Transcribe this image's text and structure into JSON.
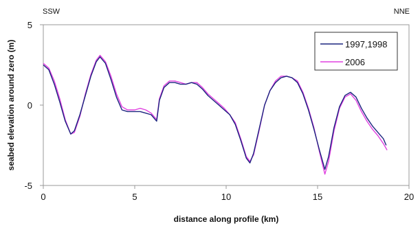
{
  "chart_data": {
    "type": "line",
    "title": "",
    "xlabel": "distance along profile (km)",
    "ylabel": "seabed elevation around zero (m)",
    "xlim": [
      0,
      20
    ],
    "ylim": [
      -5,
      5
    ],
    "x_ticks": [
      0,
      5,
      10,
      15,
      20
    ],
    "y_ticks": [
      -5,
      0,
      5
    ],
    "grid": false,
    "legend_position": "top-right",
    "annotations": {
      "left": "SSW",
      "right": "NNE"
    },
    "series": [
      {
        "name": "1997,1998",
        "color": "#1a237e",
        "x": [
          0,
          0.3,
          0.6,
          0.9,
          1.2,
          1.5,
          1.7,
          2.0,
          2.3,
          2.6,
          2.9,
          3.1,
          3.4,
          3.7,
          4.0,
          4.3,
          4.6,
          5.0,
          5.3,
          5.6,
          5.9,
          6.2,
          6.35,
          6.6,
          6.9,
          7.2,
          7.5,
          7.8,
          8.1,
          8.4,
          8.7,
          9.0,
          9.3,
          9.6,
          9.9,
          10.2,
          10.5,
          10.8,
          11.1,
          11.3,
          11.5,
          11.8,
          12.1,
          12.4,
          12.7,
          13.0,
          13.3,
          13.6,
          13.9,
          14.2,
          14.5,
          14.8,
          15.1,
          15.4,
          15.6,
          15.9,
          16.2,
          16.5,
          16.8,
          17.1,
          17.4,
          17.7,
          18.0,
          18.3,
          18.6,
          18.75
        ],
        "y": [
          2.5,
          2.2,
          1.3,
          0.2,
          -1.0,
          -1.8,
          -1.6,
          -0.6,
          0.6,
          1.8,
          2.7,
          3.0,
          2.6,
          1.6,
          0.5,
          -0.3,
          -0.4,
          -0.4,
          -0.4,
          -0.5,
          -0.6,
          -1.0,
          0.3,
          1.1,
          1.4,
          1.4,
          1.3,
          1.3,
          1.4,
          1.3,
          1.0,
          0.6,
          0.3,
          0.0,
          -0.3,
          -0.6,
          -1.2,
          -2.2,
          -3.3,
          -3.6,
          -3.0,
          -1.5,
          0.0,
          0.9,
          1.4,
          1.7,
          1.8,
          1.7,
          1.4,
          0.7,
          -0.3,
          -1.5,
          -2.8,
          -4.0,
          -3.2,
          -1.4,
          -0.1,
          0.6,
          0.8,
          0.5,
          -0.2,
          -0.8,
          -1.3,
          -1.7,
          -2.1,
          -2.5
        ]
      },
      {
        "name": "2006",
        "color": "#e040e0",
        "x": [
          0,
          0.3,
          0.6,
          0.9,
          1.2,
          1.5,
          1.7,
          2.0,
          2.3,
          2.6,
          2.9,
          3.1,
          3.4,
          3.7,
          4.0,
          4.3,
          4.6,
          5.0,
          5.3,
          5.6,
          5.9,
          6.2,
          6.35,
          6.6,
          6.9,
          7.2,
          7.5,
          7.8,
          8.1,
          8.4,
          8.7,
          9.0,
          9.3,
          9.6,
          9.9,
          10.2,
          10.5,
          10.8,
          11.1,
          11.3,
          11.5,
          11.8,
          12.1,
          12.4,
          12.7,
          13.0,
          13.3,
          13.6,
          13.9,
          14.2,
          14.5,
          14.8,
          15.1,
          15.4,
          15.6,
          15.9,
          16.2,
          16.5,
          16.8,
          17.1,
          17.4,
          17.7,
          18.0,
          18.3,
          18.6,
          18.8
        ],
        "y": [
          2.6,
          2.3,
          1.5,
          0.4,
          -0.9,
          -1.8,
          -1.7,
          -0.7,
          0.7,
          1.9,
          2.8,
          3.1,
          2.7,
          1.8,
          0.7,
          -0.1,
          -0.3,
          -0.3,
          -0.2,
          -0.3,
          -0.5,
          -0.9,
          0.4,
          1.2,
          1.5,
          1.5,
          1.4,
          1.3,
          1.4,
          1.4,
          1.1,
          0.7,
          0.4,
          0.1,
          -0.2,
          -0.6,
          -1.1,
          -2.1,
          -3.2,
          -3.5,
          -3.1,
          -1.6,
          0.0,
          0.9,
          1.5,
          1.8,
          1.8,
          1.7,
          1.5,
          0.8,
          -0.2,
          -1.4,
          -2.9,
          -4.3,
          -3.5,
          -1.6,
          -0.2,
          0.5,
          0.7,
          0.3,
          -0.4,
          -1.0,
          -1.5,
          -1.9,
          -2.4,
          -2.8
        ]
      }
    ]
  }
}
